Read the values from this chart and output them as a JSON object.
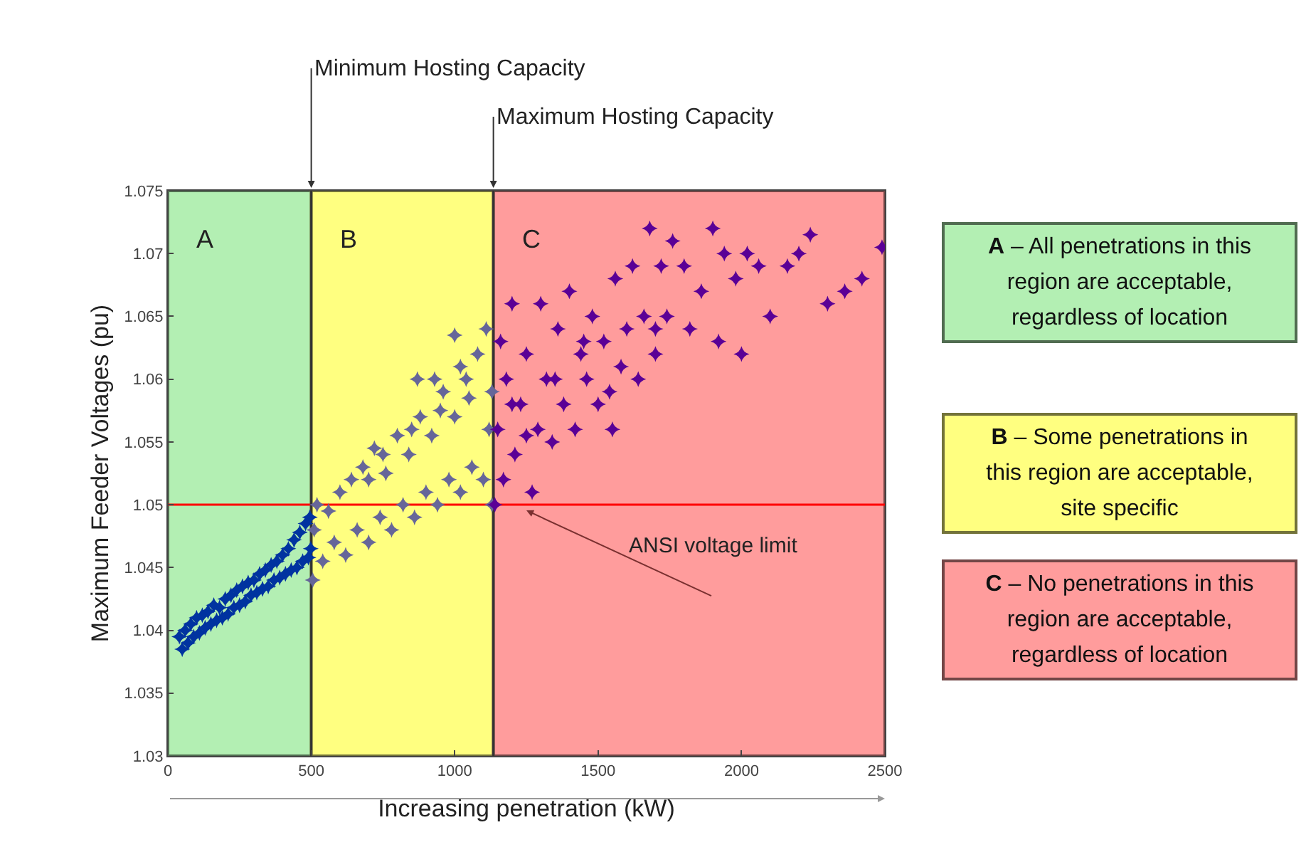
{
  "chart_data": {
    "type": "scatter",
    "xlabel": "Increasing penetration (kW)",
    "ylabel": "Maximum Feeder Voltages (pu)",
    "xlim": [
      0,
      2500
    ],
    "xticks": [
      0,
      500,
      1000,
      1500,
      2000,
      2500
    ],
    "ylim": [
      1.03,
      1.075
    ],
    "yticks": [
      1.03,
      1.035,
      1.04,
      1.045,
      1.05,
      1.055,
      1.06,
      1.065,
      1.07,
      1.075
    ],
    "grid": false,
    "marker": "star",
    "series": [
      {
        "color": "#0033a0",
        "x": [
          40,
          50,
          60,
          70,
          80,
          90,
          100,
          110,
          120,
          130,
          140,
          150,
          160,
          170,
          180,
          190,
          200,
          210,
          220,
          230,
          240,
          250,
          260,
          270,
          280,
          290,
          300,
          310,
          320,
          330,
          340,
          350,
          360,
          370,
          380,
          390,
          400,
          410,
          420,
          430,
          440,
          450,
          460,
          470,
          480,
          490,
          495,
          498
        ],
        "values": [
          1.0395,
          1.0385,
          1.04,
          1.039,
          1.0405,
          1.0395,
          1.041,
          1.0398,
          1.0412,
          1.0402,
          1.0415,
          1.0405,
          1.042,
          1.0408,
          1.0418,
          1.041,
          1.0425,
          1.0413,
          1.0428,
          1.0418,
          1.0432,
          1.042,
          1.0435,
          1.0423,
          1.0438,
          1.0428,
          1.044,
          1.043,
          1.0445,
          1.0433,
          1.0448,
          1.0435,
          1.0452,
          1.044,
          1.0455,
          1.0442,
          1.046,
          1.0445,
          1.0465,
          1.0448,
          1.0472,
          1.045,
          1.0478,
          1.0455,
          1.0485,
          1.0458,
          1.049,
          1.0465
        ]
      },
      {
        "color": "#666699",
        "x": [
          505,
          510,
          520,
          540,
          560,
          580,
          600,
          620,
          640,
          660,
          680,
          700,
          720,
          740,
          760,
          780,
          800,
          820,
          840,
          860,
          880,
          900,
          920,
          940,
          960,
          980,
          1000,
          1020,
          1040,
          1060,
          1080,
          1100,
          1110,
          1120,
          1130,
          1130,
          700,
          750,
          850,
          950,
          1050,
          1000,
          1020,
          930,
          870
        ],
        "values": [
          1.044,
          1.048,
          1.05,
          1.0455,
          1.0495,
          1.047,
          1.051,
          1.046,
          1.052,
          1.048,
          1.053,
          1.047,
          1.0545,
          1.049,
          1.0525,
          1.048,
          1.0555,
          1.05,
          1.054,
          1.049,
          1.057,
          1.051,
          1.0555,
          1.05,
          1.059,
          1.052,
          1.057,
          1.051,
          1.06,
          1.053,
          1.062,
          1.052,
          1.064,
          1.056,
          1.059,
          1.05,
          1.052,
          1.054,
          1.056,
          1.0575,
          1.0585,
          1.0635,
          1.061,
          1.06,
          1.06
        ]
      },
      {
        "color": "#5a0096",
        "x": [
          1140,
          1150,
          1160,
          1170,
          1180,
          1200,
          1210,
          1230,
          1250,
          1270,
          1290,
          1300,
          1320,
          1340,
          1360,
          1380,
          1400,
          1420,
          1440,
          1460,
          1480,
          1500,
          1520,
          1540,
          1560,
          1580,
          1600,
          1620,
          1640,
          1660,
          1680,
          1700,
          1720,
          1740,
          1760,
          1800,
          1820,
          1860,
          1900,
          1920,
          1940,
          1980,
          2000,
          2020,
          2060,
          2100,
          2160,
          2200,
          2240,
          2300,
          2360,
          2420,
          2490,
          1250,
          1350,
          1450,
          1200,
          1700,
          1550
        ],
        "values": [
          1.05,
          1.056,
          1.063,
          1.052,
          1.06,
          1.066,
          1.054,
          1.058,
          1.062,
          1.051,
          1.056,
          1.066,
          1.06,
          1.055,
          1.064,
          1.058,
          1.067,
          1.056,
          1.062,
          1.06,
          1.065,
          1.058,
          1.063,
          1.059,
          1.068,
          1.061,
          1.064,
          1.069,
          1.06,
          1.065,
          1.072,
          1.064,
          1.069,
          1.065,
          1.071,
          1.069,
          1.064,
          1.067,
          1.072,
          1.063,
          1.07,
          1.068,
          1.062,
          1.07,
          1.069,
          1.065,
          1.069,
          1.07,
          1.0715,
          1.066,
          1.067,
          1.068,
          1.0705,
          1.0555,
          1.06,
          1.063,
          1.058,
          1.062,
          1.056
        ]
      }
    ],
    "bands": [
      {
        "axis": "x",
        "from": 0,
        "to": 500,
        "label": "A",
        "color": "#b3efb3"
      },
      {
        "axis": "x",
        "from": 500,
        "to": 1135,
        "label": "B",
        "color": "#ffff80"
      },
      {
        "axis": "x",
        "from": 1135,
        "to": 2500,
        "label": "C",
        "color": "#ff9c9c"
      }
    ],
    "ref_lines": [
      {
        "axis": "y",
        "value": 1.05,
        "label": "ANSI voltage limit",
        "color": "#ff0000"
      },
      {
        "axis": "x",
        "value": 500,
        "label": "Minimum Hosting Capacity"
      },
      {
        "axis": "x",
        "value": 1135,
        "label": "Maximum Hosting Capacity"
      }
    ],
    "annotations": [
      "A – All penetrations in this region are acceptable, regardless of location",
      "B – Some penetrations in this region are acceptable, site specific",
      "C – No penetrations in this region are acceptable, regardless of location"
    ]
  }
}
